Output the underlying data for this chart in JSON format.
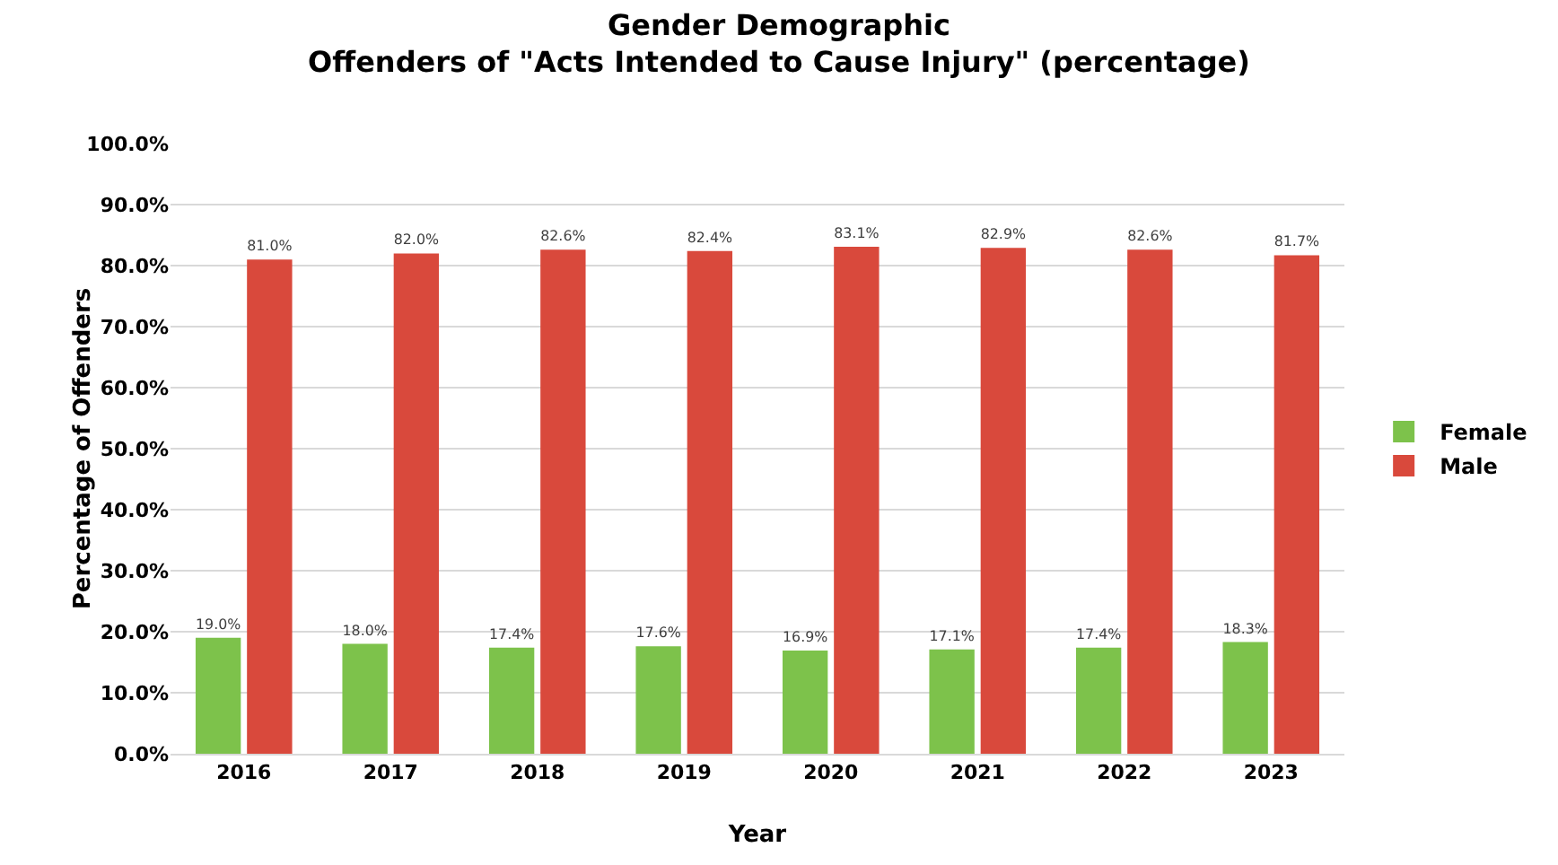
{
  "chart_data": {
    "type": "bar",
    "title": "Gender Demographic\nOffenders of \"Acts Intended to Cause Injury\" (percentage)",
    "xlabel": "Year",
    "ylabel": "Percentage of Offenders",
    "categories": [
      "2016",
      "2017",
      "2018",
      "2019",
      "2020",
      "2021",
      "2022",
      "2023"
    ],
    "series": [
      {
        "name": "Female",
        "color": "#7dc24b",
        "values": [
          19.0,
          18.0,
          17.4,
          17.6,
          16.9,
          17.1,
          17.4,
          18.3
        ],
        "value_labels": [
          "19.0%",
          "18.0%",
          "17.4%",
          "17.6%",
          "16.9%",
          "17.1%",
          "17.4%",
          "18.3%"
        ]
      },
      {
        "name": "Male",
        "color": "#d9493c",
        "values": [
          81.0,
          82.0,
          82.6,
          82.4,
          83.1,
          82.9,
          82.6,
          81.7
        ],
        "value_labels": [
          "81.0%",
          "82.0%",
          "82.6%",
          "82.4%",
          "83.1%",
          "82.9%",
          "82.6%",
          "81.7%"
        ]
      }
    ],
    "ylim": [
      0,
      100
    ],
    "yticks": [
      {
        "value": 0,
        "label": "0.0%"
      },
      {
        "value": 10,
        "label": "10.0%"
      },
      {
        "value": 20,
        "label": "20.0%"
      },
      {
        "value": 30,
        "label": "30.0%"
      },
      {
        "value": 40,
        "label": "40.0%"
      },
      {
        "value": 50,
        "label": "50.0%"
      },
      {
        "value": 60,
        "label": "60.0%"
      },
      {
        "value": 70,
        "label": "70.0%"
      },
      {
        "value": 80,
        "label": "80.0%"
      },
      {
        "value": 90,
        "label": "90.0%"
      },
      {
        "value": 100,
        "label": "100.0%"
      }
    ],
    "grid": "y",
    "legend": "right"
  }
}
